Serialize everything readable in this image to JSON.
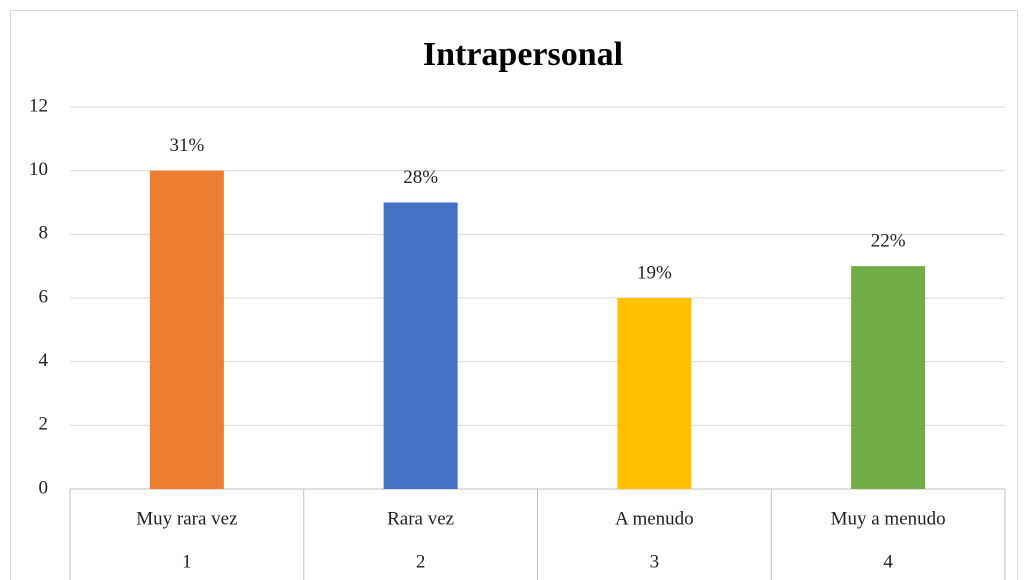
{
  "chart_data": {
    "type": "bar",
    "title": "Intrapersonal",
    "categories": [
      "Muy rara vez",
      "Rara vez",
      "A menudo",
      "Muy a menudo"
    ],
    "category_codes": [
      1,
      2,
      3,
      4
    ],
    "values": [
      10,
      9,
      6,
      7
    ],
    "annotations": [
      "31%",
      "28%",
      "19%",
      "22%"
    ],
    "colors": [
      "#ed7d31",
      "#4472c4",
      "#ffc000",
      "#70ad47"
    ],
    "ylim": [
      0,
      12
    ],
    "yticks": [
      0,
      2,
      4,
      6,
      8,
      10,
      12
    ],
    "grid": true
  }
}
